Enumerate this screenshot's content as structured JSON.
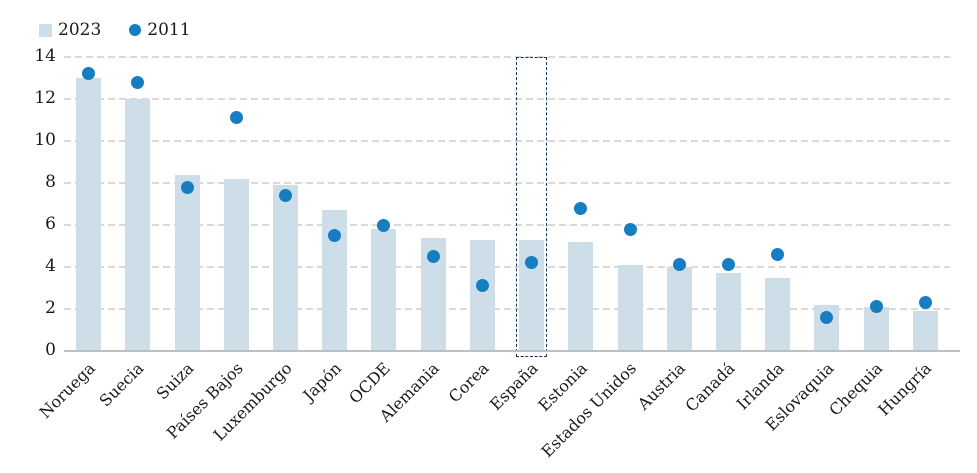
{
  "legend": {
    "items": [
      {
        "label": "2023",
        "swatch": "square"
      },
      {
        "label": "2011",
        "swatch": "dot"
      }
    ]
  },
  "colors": {
    "bar_fill": "#cddee8",
    "dot_fill": "#167dc2",
    "gridline": "#d9d9d9",
    "axis_line": "#bfbfbf",
    "highlight_border": "#17365d",
    "text": "#1a1a1a"
  },
  "chart_data": {
    "type": "bar",
    "categories": [
      "Noruega",
      "Suecia",
      "Suiza",
      "Países Bajos",
      "Luxemburgo",
      "Japón",
      "OCDE",
      "Alemania",
      "Corea",
      "España",
      "Estonia",
      "Estados Unidos",
      "Austria",
      "Canadá",
      "Irlanda",
      "Eslovaquia",
      "Chequia",
      "Hungría"
    ],
    "series": [
      {
        "name": "2023",
        "type": "bar",
        "values": [
          13.0,
          12.0,
          8.4,
          8.2,
          7.9,
          6.7,
          5.8,
          5.4,
          5.3,
          5.3,
          5.2,
          4.1,
          4.0,
          3.7,
          3.5,
          2.2,
          2.1,
          1.9
        ]
      },
      {
        "name": "2011",
        "type": "scatter",
        "values": [
          13.2,
          12.8,
          7.8,
          11.1,
          7.4,
          5.5,
          6.0,
          4.5,
          3.1,
          4.2,
          6.8,
          5.8,
          4.1,
          4.1,
          4.6,
          1.6,
          2.1,
          2.3
        ]
      }
    ],
    "title": "",
    "xlabel": "",
    "ylabel": "",
    "ylim": [
      0,
      14
    ],
    "yticks": [
      0,
      2,
      4,
      6,
      8,
      10,
      12,
      14
    ],
    "grid": true,
    "gridline_style": "dashed",
    "legend_position": "top-left",
    "highlighted_category": "España"
  }
}
